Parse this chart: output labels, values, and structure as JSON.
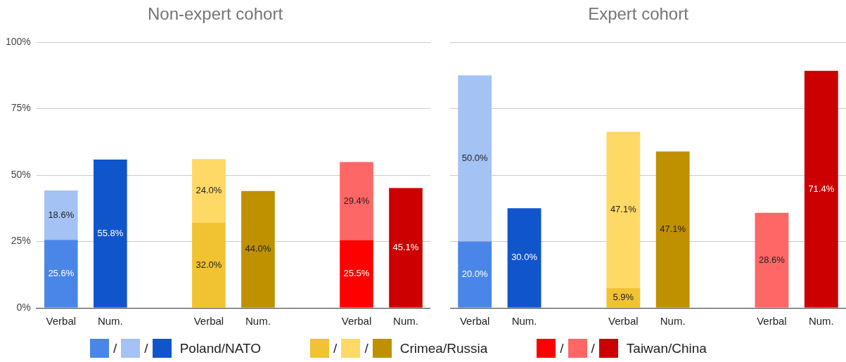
{
  "chart_data": [
    {
      "type": "bar",
      "title": "Non-expert cohort",
      "stacked": true,
      "grid": "y",
      "legend": "bottom",
      "categories": [
        "Verbal",
        "Num.",
        null,
        "Verbal",
        "Num.",
        null,
        "Verbal",
        "Num."
      ],
      "ylim": [
        0,
        100
      ],
      "yticks": [
        {
          "value": 0,
          "label": "0%"
        },
        {
          "value": 25,
          "label": "25%"
        },
        {
          "value": 50,
          "label": "50%"
        },
        {
          "value": 75,
          "label": "75%"
        },
        {
          "value": 100,
          "label": "100%"
        }
      ],
      "series": [
        {
          "name": "/",
          "color": "#4a86e8",
          "values": [
            25.6,
            null,
            null,
            null,
            null,
            null,
            null,
            null
          ],
          "value_labels": [
            "25.6%",
            null,
            null,
            null,
            null,
            null,
            null,
            null
          ]
        },
        {
          "name": "/",
          "color": "#a4c2f4",
          "values": [
            18.6,
            null,
            null,
            null,
            null,
            null,
            null,
            null
          ],
          "value_labels": [
            "18.6%",
            null,
            null,
            null,
            null,
            null,
            null,
            null
          ]
        },
        {
          "name": "Poland/NATO",
          "color": "#1155cc",
          "values": [
            null,
            55.8,
            null,
            null,
            null,
            null,
            null,
            null
          ],
          "value_labels": [
            null,
            "55.8%",
            null,
            null,
            null,
            null,
            null,
            null
          ]
        },
        {
          "name": "/",
          "color": "#f1c232",
          "values": [
            null,
            null,
            null,
            32.0,
            null,
            null,
            null,
            null
          ],
          "value_labels": [
            null,
            null,
            null,
            "32.0%",
            null,
            null,
            null,
            null
          ]
        },
        {
          "name": "/",
          "color": "#ffd966",
          "values": [
            null,
            null,
            null,
            24.0,
            null,
            null,
            null,
            null
          ],
          "value_labels": [
            null,
            null,
            null,
            "24.0%",
            null,
            null,
            null,
            null
          ]
        },
        {
          "name": "Crimea/Russia",
          "color": "#bf9000",
          "values": [
            null,
            null,
            null,
            null,
            44.0,
            null,
            null,
            null
          ],
          "value_labels": [
            null,
            null,
            null,
            null,
            "44.0%",
            null,
            null,
            null
          ]
        },
        {
          "name": "/",
          "color": "#ff0000",
          "values": [
            null,
            null,
            null,
            null,
            null,
            null,
            25.5,
            null
          ],
          "value_labels": [
            null,
            null,
            null,
            null,
            null,
            null,
            "25.5%",
            null
          ]
        },
        {
          "name": "/",
          "color": "#ff6666",
          "values": [
            null,
            null,
            null,
            null,
            null,
            null,
            29.4,
            null
          ],
          "value_labels": [
            null,
            null,
            null,
            null,
            null,
            null,
            "29.4%",
            null
          ]
        },
        {
          "name": "Taiwan/China",
          "color": "#cc0000",
          "values": [
            null,
            null,
            null,
            null,
            null,
            null,
            null,
            45.1
          ],
          "value_labels": [
            null,
            null,
            null,
            null,
            null,
            null,
            null,
            "45.1%"
          ]
        }
      ]
    },
    {
      "type": "bar",
      "title": "Expert cohort",
      "stacked": true,
      "grid": "y",
      "tick_labels": "x",
      "categories": [
        "Verbal",
        "Num.",
        null,
        "Verbal",
        "Num.",
        null,
        "Verbal",
        "Num."
      ],
      "ylim": [
        0,
        80
      ],
      "yticks": [
        0,
        20,
        40,
        60,
        80
      ],
      "series": [
        {
          "color": "#4a86e8",
          "values": [
            20.0,
            null,
            null,
            null,
            null,
            null,
            null,
            null
          ],
          "value_labels": [
            "20.0%",
            null,
            null,
            null,
            null,
            null,
            null,
            null
          ]
        },
        {
          "color": "#a4c2f4",
          "values": [
            50.0,
            null,
            null,
            null,
            null,
            null,
            null,
            null
          ],
          "value_labels": [
            "50.0%",
            null,
            null,
            null,
            null,
            null,
            null,
            null
          ]
        },
        {
          "color": "#1155cc",
          "values": [
            null,
            30.0,
            null,
            null,
            null,
            null,
            null,
            null
          ],
          "value_labels": [
            null,
            "30.0%",
            null,
            null,
            null,
            null,
            null,
            null
          ]
        },
        {
          "color": "#f1c232",
          "values": [
            null,
            null,
            null,
            5.9,
            null,
            null,
            null,
            null
          ],
          "value_labels": [
            null,
            null,
            null,
            "5.9%",
            null,
            null,
            null,
            null
          ]
        },
        {
          "color": "#ffd966",
          "values": [
            null,
            null,
            null,
            47.1,
            null,
            null,
            null,
            null
          ],
          "value_labels": [
            null,
            null,
            null,
            "47.1%",
            null,
            null,
            null,
            null
          ]
        },
        {
          "color": "#bf9000",
          "values": [
            null,
            null,
            null,
            null,
            47.1,
            null,
            null,
            null
          ],
          "value_labels": [
            null,
            null,
            null,
            null,
            "47.1%",
            null,
            null,
            null
          ]
        },
        {
          "color": "#ff6666",
          "values": [
            null,
            null,
            null,
            null,
            null,
            null,
            28.6,
            null
          ],
          "value_labels": [
            null,
            null,
            null,
            null,
            null,
            null,
            "28.6%",
            null
          ]
        },
        {
          "color": "#cc0000",
          "values": [
            null,
            null,
            null,
            null,
            null,
            null,
            null,
            71.4
          ],
          "value_labels": [
            null,
            null,
            null,
            null,
            null,
            null,
            null,
            "71.4%"
          ]
        }
      ]
    }
  ]
}
